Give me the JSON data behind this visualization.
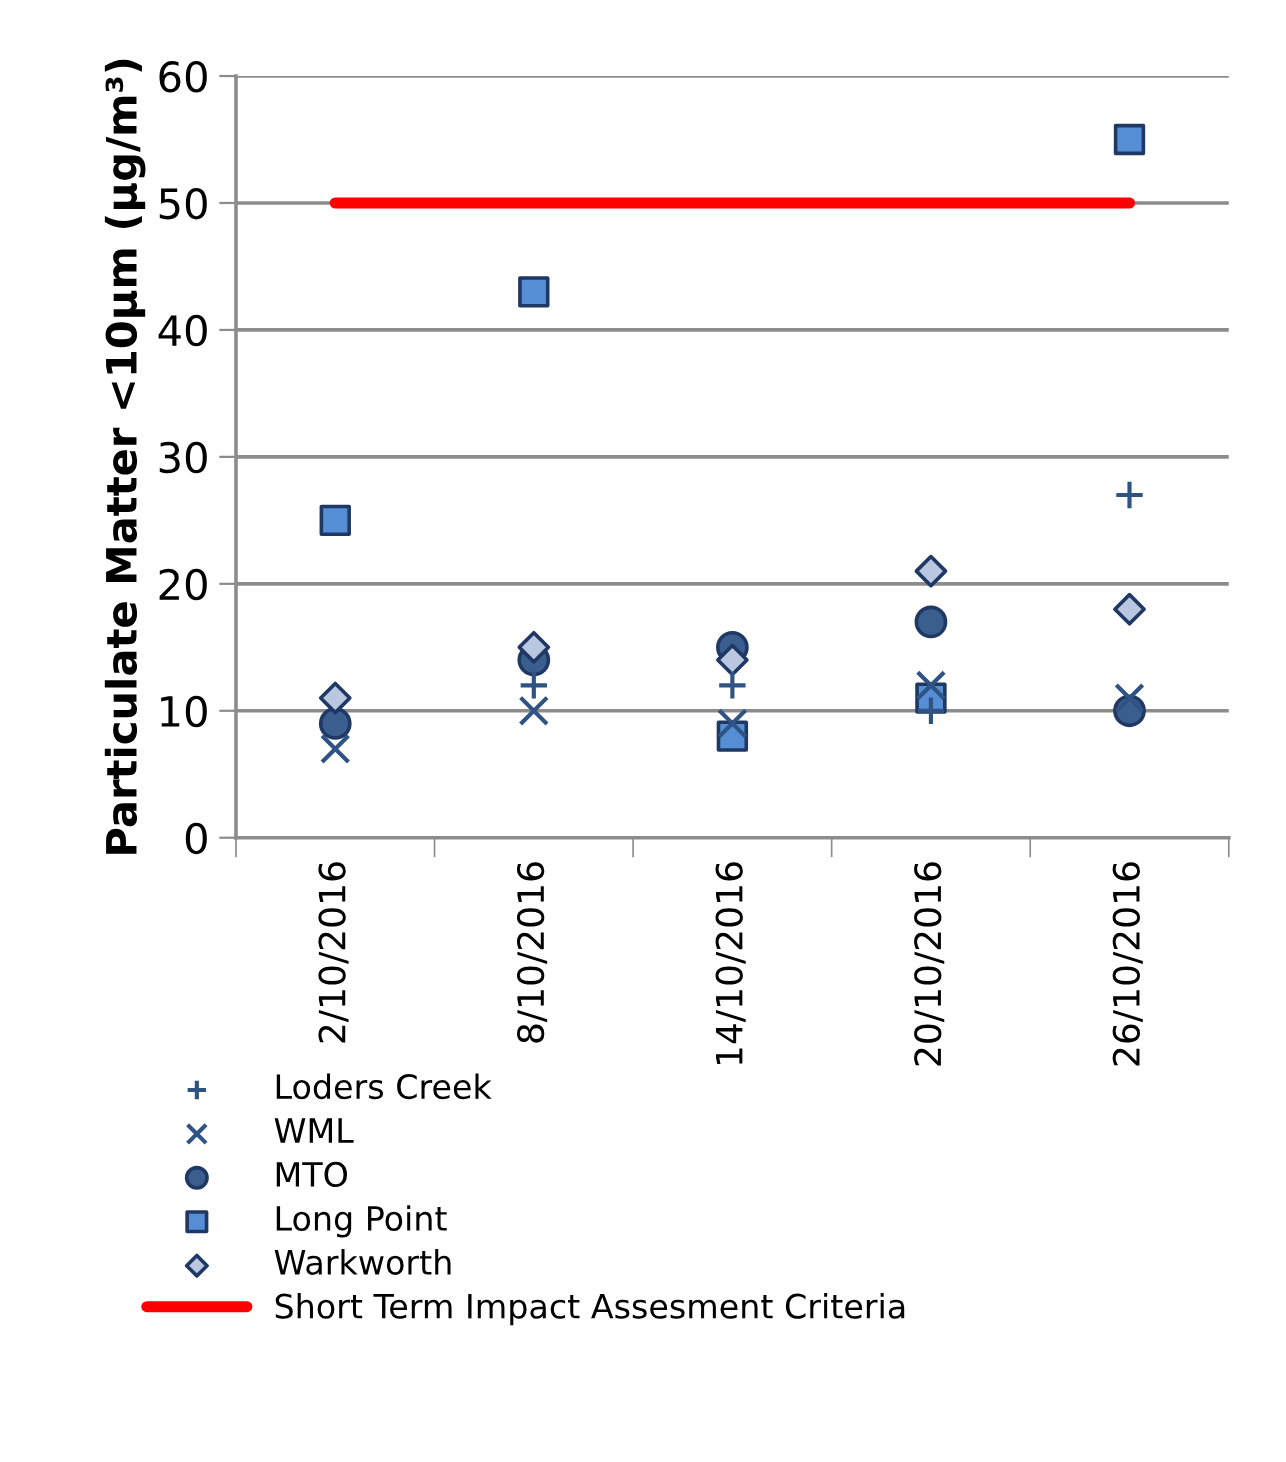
{
  "chart_data": {
    "type": "scatter",
    "ylabel": "Particulate Matter <10μm (μg/m³)",
    "categories": [
      "2/10/2016",
      "8/10/2016",
      "14/10/2016",
      "20/10/2016",
      "26/10/2016"
    ],
    "ylim": [
      0,
      60
    ],
    "yticks": [
      0,
      10,
      20,
      30,
      40,
      50,
      60
    ],
    "grid": "y",
    "legend": "bottom",
    "series": [
      {
        "name": "Loders Creek",
        "marker": "plus",
        "color": "#2f5483",
        "values": [
          null,
          12,
          12,
          10,
          27
        ]
      },
      {
        "name": "WML",
        "marker": "cross",
        "color": "#2f5483",
        "values": [
          7,
          10,
          9,
          12,
          11
        ]
      },
      {
        "name": "MTO",
        "marker": "circle",
        "color": "#3a5f8f",
        "values": [
          9,
          14,
          15,
          17,
          10
        ]
      },
      {
        "name": "Long Point",
        "marker": "square",
        "color": "#558ed5",
        "values": [
          25,
          43,
          8,
          11,
          55
        ]
      },
      {
        "name": "Warkworth",
        "marker": "diamond",
        "color": "#b9c7e0",
        "values": [
          11,
          15,
          14,
          21,
          18
        ]
      },
      {
        "name": "Short Term Impact Assesment Criteria",
        "type": "line",
        "marker": "none",
        "color": "#ff0000",
        "values": [
          50,
          50,
          50,
          50,
          50
        ]
      }
    ]
  }
}
